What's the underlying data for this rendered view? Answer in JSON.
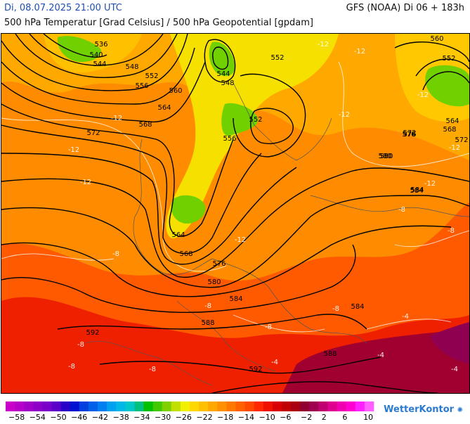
{
  "header": {
    "datetime": "Di, 08.07.2025 21:00 UTC",
    "model": "GFS (NOAA) Di 06 + 183h",
    "title": "500 hPa Temperatur [Grad Celsius] / 500 hPa Geopotential [gpdam]"
  },
  "colorbar": {
    "labels": [
      "−58",
      "−54",
      "−50",
      "−46",
      "−42",
      "−38",
      "−34",
      "−30",
      "−26",
      "−22",
      "−18",
      "−14",
      "−10",
      "−6",
      "−2",
      "2",
      "6",
      "10"
    ],
    "colors": [
      "#c800c8",
      "#b400c8",
      "#a000c8",
      "#8c00c8",
      "#7800c8",
      "#5a00c8",
      "#2800c8",
      "#0010d0",
      "#0040e0",
      "#0060e8",
      "#0080f0",
      "#00a0f0",
      "#00b8e8",
      "#00c8c8",
      "#00c080",
      "#00c000",
      "#40c800",
      "#80d000",
      "#c0e000",
      "#f0f000",
      "#ffd800",
      "#ffc000",
      "#ffa800",
      "#ff9000",
      "#ff7800",
      "#ff6000",
      "#ff4800",
      "#ff2800",
      "#f01000",
      "#d80000",
      "#c00000",
      "#a80010",
      "#900030",
      "#a00050",
      "#c00070",
      "#e00090",
      "#f000b0",
      "#ff00d0",
      "#ff20ff",
      "#ff60ff"
    ]
  },
  "contours_gpdam": [
    "536",
    "540",
    "544",
    "548",
    "552",
    "556",
    "560",
    "564",
    "568",
    "572",
    "576",
    "580",
    "584",
    "588",
    "592",
    "580",
    "552",
    "548",
    "544",
    "552",
    "556",
    "564",
    "568",
    "572",
    "576",
    "580",
    "584",
    "584",
    "588",
    "592",
    "552",
    "560",
    "564",
    "568",
    "572",
    "576",
    "584"
  ],
  "temp_labels": [
    "-12",
    "-12",
    "-12",
    "-12",
    "-12",
    "-12",
    "-12",
    "-12",
    "-12",
    "-12",
    "-8",
    "-8",
    "-8",
    "-8",
    "-8",
    "-8",
    "-8",
    "-8",
    "-8",
    "-4",
    "-4",
    "-4",
    "-4"
  ],
  "brand": {
    "name": "WetterKontor",
    "dot": "✺"
  }
}
